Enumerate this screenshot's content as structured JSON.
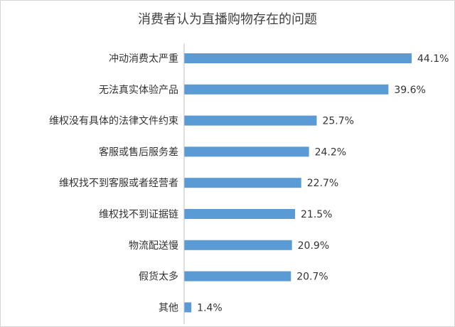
{
  "chart_data": {
    "type": "bar",
    "orientation": "horizontal",
    "title": "消费者认为直播购物存在的问题",
    "categories": [
      "冲动消费太严重",
      "无法真实体验产品",
      "维权没有具体的法律文件约束",
      "客服或售后服务差",
      "维权找不到客服或者经营者",
      "维权找不到证据链",
      "物流配送慢",
      "假货太多",
      "其他"
    ],
    "values": [
      44.1,
      39.6,
      25.7,
      24.2,
      22.7,
      21.5,
      20.9,
      20.7,
      1.4
    ],
    "value_labels": [
      "44.1%",
      "39.6%",
      "25.7%",
      "24.2%",
      "22.7%",
      "21.5%",
      "20.9%",
      "20.7%",
      "1.4%"
    ],
    "xlim": [
      0,
      44.1
    ],
    "xlabel": "",
    "ylabel": "",
    "grid": false,
    "legend": "none",
    "bar_color": "#5b9bd5"
  }
}
